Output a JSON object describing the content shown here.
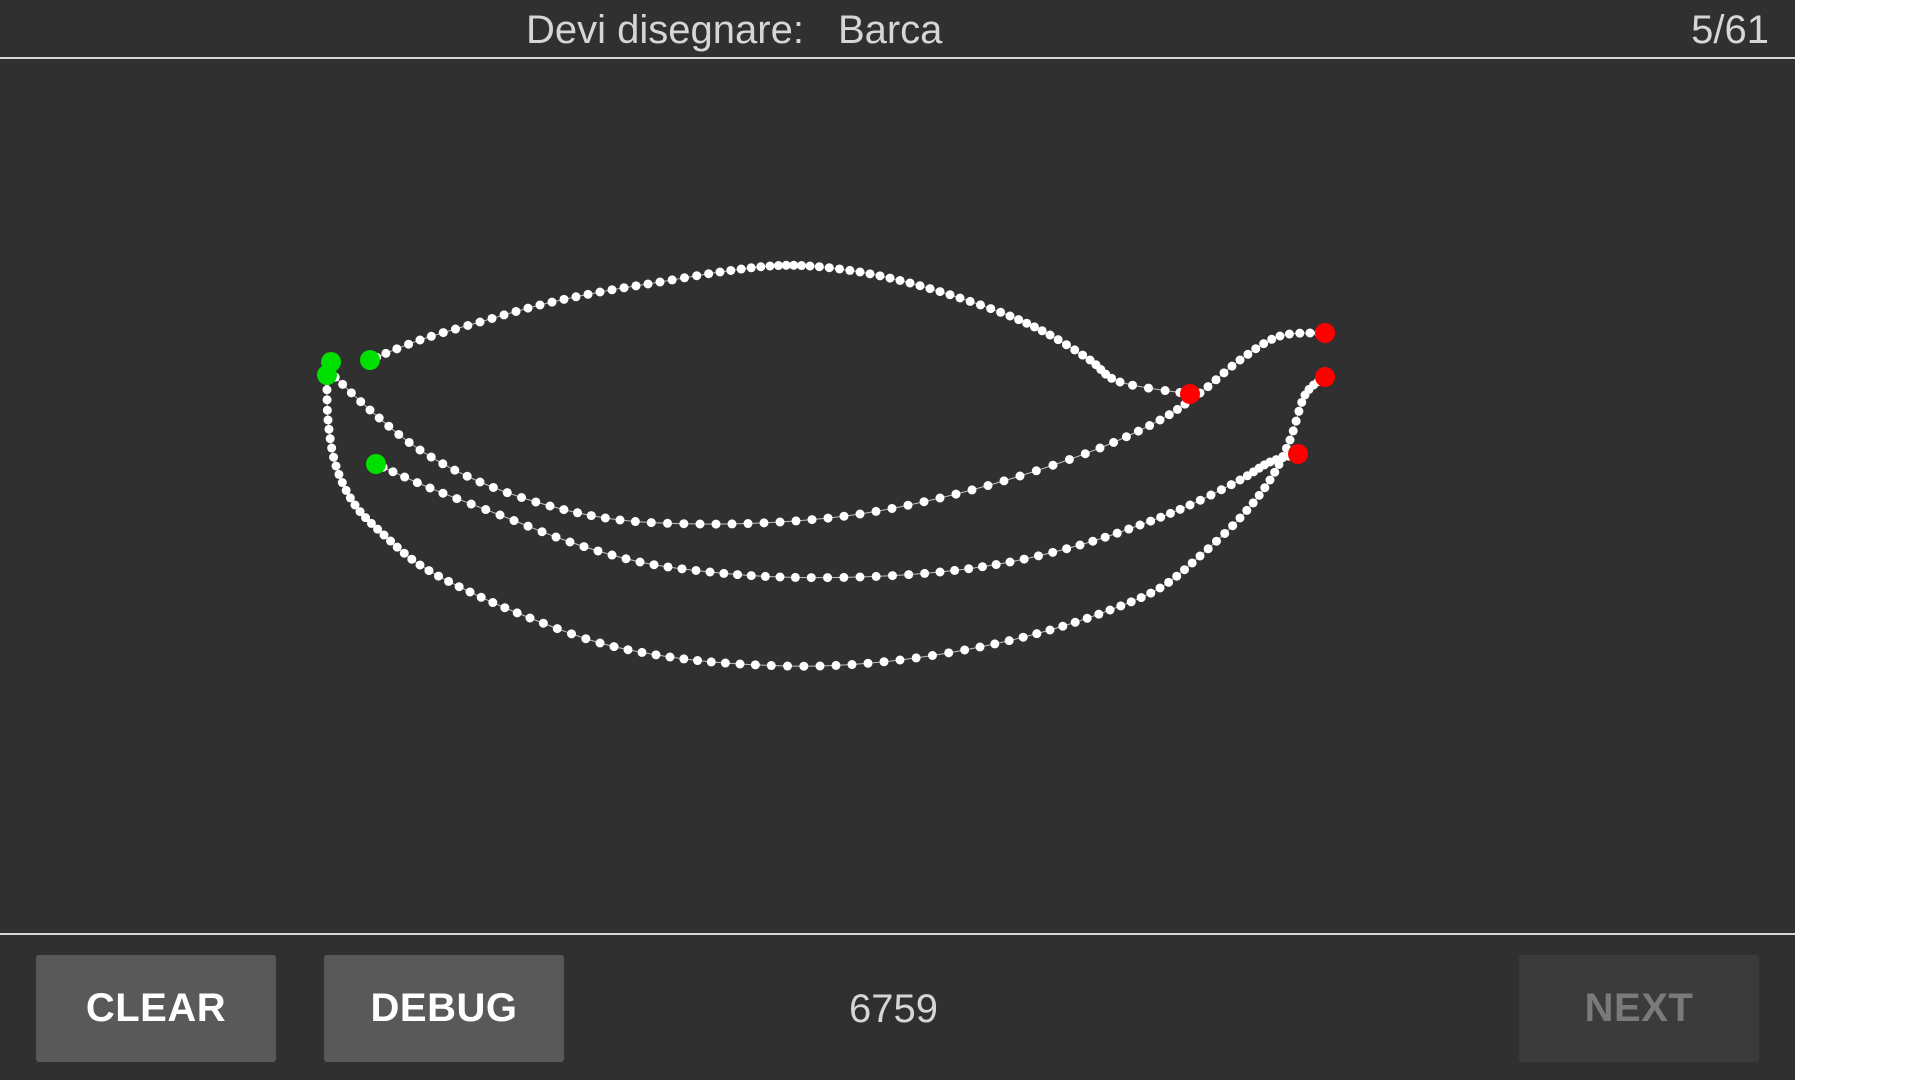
{
  "header": {
    "prompt_label": "Devi disegnare:",
    "prompt_word": "Barca",
    "counter": "5/61"
  },
  "footer": {
    "clear_label": "CLEAR",
    "debug_label": "DEBUG",
    "score": "6759",
    "next_label": "NEXT"
  },
  "colors": {
    "background": "#303030",
    "stroke_point": "#ffffff",
    "start_point": "#00e000",
    "end_point": "#ff0000",
    "button": "#595959",
    "button_disabled": "#3b3b3b"
  }
}
